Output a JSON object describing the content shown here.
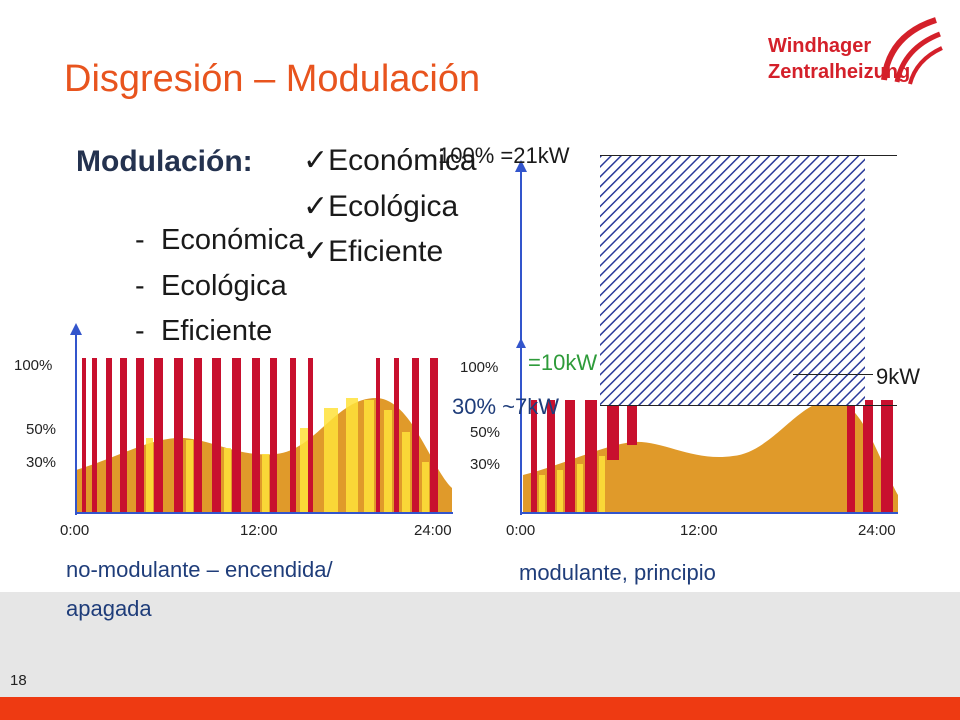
{
  "slide": {
    "title": "Disgresión – Modulación",
    "page_number": "18"
  },
  "logo": {
    "line1": "Windhager",
    "line2": "Zentralheizung"
  },
  "modulation": {
    "heading": "Modulación:",
    "checked_items": [
      "Económica",
      "Ecológica",
      "Eficiente"
    ],
    "dash_items": [
      "Económica",
      "Ecológica",
      "Eficiente"
    ]
  },
  "left_chart": {
    "y_ticks": [
      "100%",
      "50%",
      "30%"
    ],
    "x_ticks": [
      "0:00",
      "12:00",
      "24:00"
    ],
    "caption_line1": "no-modulante – encendida/",
    "caption_line2": "apagada"
  },
  "right_chart": {
    "y_ticks": [
      "100%",
      "50%",
      "30%"
    ],
    "x_ticks": [
      "0:00",
      "12:00",
      "24:00"
    ],
    "caption": "modulante, principio",
    "label_100": "100% =21kW",
    "label_10kw": "=10kW",
    "label_30": "30% ~7kW",
    "label_9kw": "9kW"
  },
  "colors": {
    "accent": "#e8541e",
    "bar_red": "#c8102e",
    "demand_orange": "#e09a2a",
    "bar_yellow": "#ffe23a",
    "axis_blue": "#3355cc",
    "hatch_blue": "#2a3a9a",
    "label_green": "#2e9b3a"
  }
}
